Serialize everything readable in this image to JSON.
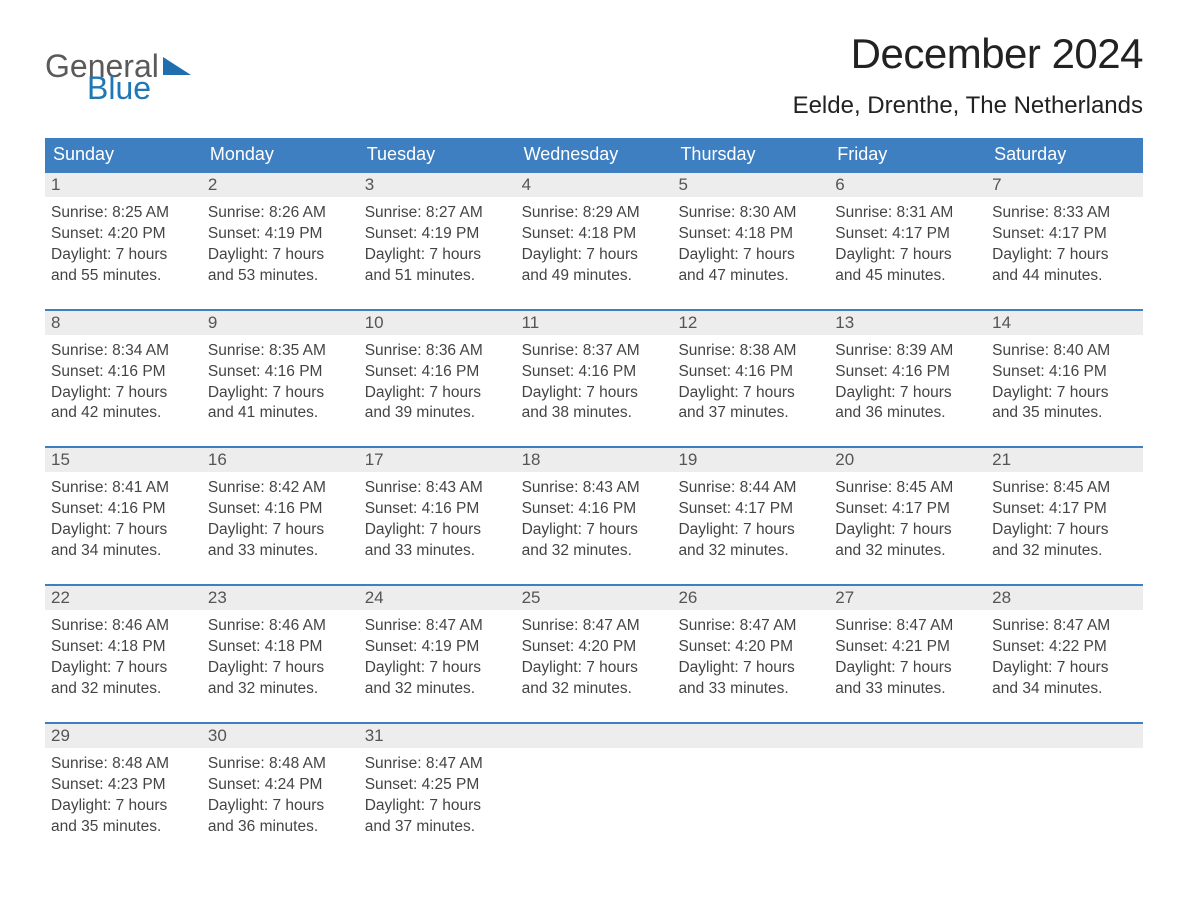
{
  "logo": {
    "text1": "General",
    "text2": "Blue",
    "color_general": "#5a5a5a",
    "color_blue": "#1f77b4"
  },
  "title": "December 2024",
  "subtitle": "Eelde, Drenthe, The Netherlands",
  "colors": {
    "header_bg": "#3d7fc1",
    "header_text": "#ffffff",
    "daynum_bg": "#ededed",
    "border_top": "#3d7fc1",
    "body_text": "#444444",
    "background": "#ffffff"
  },
  "fonts": {
    "title_size": 42,
    "subtitle_size": 24,
    "dow_size": 18,
    "daynum_size": 17,
    "body_size": 15.5
  },
  "days_of_week": [
    "Sunday",
    "Monday",
    "Tuesday",
    "Wednesday",
    "Thursday",
    "Friday",
    "Saturday"
  ],
  "weeks": [
    [
      {
        "num": "1",
        "sunrise": "Sunrise: 8:25 AM",
        "sunset": "Sunset: 4:20 PM",
        "dl1": "Daylight: 7 hours",
        "dl2": "and 55 minutes."
      },
      {
        "num": "2",
        "sunrise": "Sunrise: 8:26 AM",
        "sunset": "Sunset: 4:19 PM",
        "dl1": "Daylight: 7 hours",
        "dl2": "and 53 minutes."
      },
      {
        "num": "3",
        "sunrise": "Sunrise: 8:27 AM",
        "sunset": "Sunset: 4:19 PM",
        "dl1": "Daylight: 7 hours",
        "dl2": "and 51 minutes."
      },
      {
        "num": "4",
        "sunrise": "Sunrise: 8:29 AM",
        "sunset": "Sunset: 4:18 PM",
        "dl1": "Daylight: 7 hours",
        "dl2": "and 49 minutes."
      },
      {
        "num": "5",
        "sunrise": "Sunrise: 8:30 AM",
        "sunset": "Sunset: 4:18 PM",
        "dl1": "Daylight: 7 hours",
        "dl2": "and 47 minutes."
      },
      {
        "num": "6",
        "sunrise": "Sunrise: 8:31 AM",
        "sunset": "Sunset: 4:17 PM",
        "dl1": "Daylight: 7 hours",
        "dl2": "and 45 minutes."
      },
      {
        "num": "7",
        "sunrise": "Sunrise: 8:33 AM",
        "sunset": "Sunset: 4:17 PM",
        "dl1": "Daylight: 7 hours",
        "dl2": "and 44 minutes."
      }
    ],
    [
      {
        "num": "8",
        "sunrise": "Sunrise: 8:34 AM",
        "sunset": "Sunset: 4:16 PM",
        "dl1": "Daylight: 7 hours",
        "dl2": "and 42 minutes."
      },
      {
        "num": "9",
        "sunrise": "Sunrise: 8:35 AM",
        "sunset": "Sunset: 4:16 PM",
        "dl1": "Daylight: 7 hours",
        "dl2": "and 41 minutes."
      },
      {
        "num": "10",
        "sunrise": "Sunrise: 8:36 AM",
        "sunset": "Sunset: 4:16 PM",
        "dl1": "Daylight: 7 hours",
        "dl2": "and 39 minutes."
      },
      {
        "num": "11",
        "sunrise": "Sunrise: 8:37 AM",
        "sunset": "Sunset: 4:16 PM",
        "dl1": "Daylight: 7 hours",
        "dl2": "and 38 minutes."
      },
      {
        "num": "12",
        "sunrise": "Sunrise: 8:38 AM",
        "sunset": "Sunset: 4:16 PM",
        "dl1": "Daylight: 7 hours",
        "dl2": "and 37 minutes."
      },
      {
        "num": "13",
        "sunrise": "Sunrise: 8:39 AM",
        "sunset": "Sunset: 4:16 PM",
        "dl1": "Daylight: 7 hours",
        "dl2": "and 36 minutes."
      },
      {
        "num": "14",
        "sunrise": "Sunrise: 8:40 AM",
        "sunset": "Sunset: 4:16 PM",
        "dl1": "Daylight: 7 hours",
        "dl2": "and 35 minutes."
      }
    ],
    [
      {
        "num": "15",
        "sunrise": "Sunrise: 8:41 AM",
        "sunset": "Sunset: 4:16 PM",
        "dl1": "Daylight: 7 hours",
        "dl2": "and 34 minutes."
      },
      {
        "num": "16",
        "sunrise": "Sunrise: 8:42 AM",
        "sunset": "Sunset: 4:16 PM",
        "dl1": "Daylight: 7 hours",
        "dl2": "and 33 minutes."
      },
      {
        "num": "17",
        "sunrise": "Sunrise: 8:43 AM",
        "sunset": "Sunset: 4:16 PM",
        "dl1": "Daylight: 7 hours",
        "dl2": "and 33 minutes."
      },
      {
        "num": "18",
        "sunrise": "Sunrise: 8:43 AM",
        "sunset": "Sunset: 4:16 PM",
        "dl1": "Daylight: 7 hours",
        "dl2": "and 32 minutes."
      },
      {
        "num": "19",
        "sunrise": "Sunrise: 8:44 AM",
        "sunset": "Sunset: 4:17 PM",
        "dl1": "Daylight: 7 hours",
        "dl2": "and 32 minutes."
      },
      {
        "num": "20",
        "sunrise": "Sunrise: 8:45 AM",
        "sunset": "Sunset: 4:17 PM",
        "dl1": "Daylight: 7 hours",
        "dl2": "and 32 minutes."
      },
      {
        "num": "21",
        "sunrise": "Sunrise: 8:45 AM",
        "sunset": "Sunset: 4:17 PM",
        "dl1": "Daylight: 7 hours",
        "dl2": "and 32 minutes."
      }
    ],
    [
      {
        "num": "22",
        "sunrise": "Sunrise: 8:46 AM",
        "sunset": "Sunset: 4:18 PM",
        "dl1": "Daylight: 7 hours",
        "dl2": "and 32 minutes."
      },
      {
        "num": "23",
        "sunrise": "Sunrise: 8:46 AM",
        "sunset": "Sunset: 4:18 PM",
        "dl1": "Daylight: 7 hours",
        "dl2": "and 32 minutes."
      },
      {
        "num": "24",
        "sunrise": "Sunrise: 8:47 AM",
        "sunset": "Sunset: 4:19 PM",
        "dl1": "Daylight: 7 hours",
        "dl2": "and 32 minutes."
      },
      {
        "num": "25",
        "sunrise": "Sunrise: 8:47 AM",
        "sunset": "Sunset: 4:20 PM",
        "dl1": "Daylight: 7 hours",
        "dl2": "and 32 minutes."
      },
      {
        "num": "26",
        "sunrise": "Sunrise: 8:47 AM",
        "sunset": "Sunset: 4:20 PM",
        "dl1": "Daylight: 7 hours",
        "dl2": "and 33 minutes."
      },
      {
        "num": "27",
        "sunrise": "Sunrise: 8:47 AM",
        "sunset": "Sunset: 4:21 PM",
        "dl1": "Daylight: 7 hours",
        "dl2": "and 33 minutes."
      },
      {
        "num": "28",
        "sunrise": "Sunrise: 8:47 AM",
        "sunset": "Sunset: 4:22 PM",
        "dl1": "Daylight: 7 hours",
        "dl2": "and 34 minutes."
      }
    ],
    [
      {
        "num": "29",
        "sunrise": "Sunrise: 8:48 AM",
        "sunset": "Sunset: 4:23 PM",
        "dl1": "Daylight: 7 hours",
        "dl2": "and 35 minutes."
      },
      {
        "num": "30",
        "sunrise": "Sunrise: 8:48 AM",
        "sunset": "Sunset: 4:24 PM",
        "dl1": "Daylight: 7 hours",
        "dl2": "and 36 minutes."
      },
      {
        "num": "31",
        "sunrise": "Sunrise: 8:47 AM",
        "sunset": "Sunset: 4:25 PM",
        "dl1": "Daylight: 7 hours",
        "dl2": "and 37 minutes."
      },
      {
        "empty": true
      },
      {
        "empty": true
      },
      {
        "empty": true
      },
      {
        "empty": true
      }
    ]
  ]
}
